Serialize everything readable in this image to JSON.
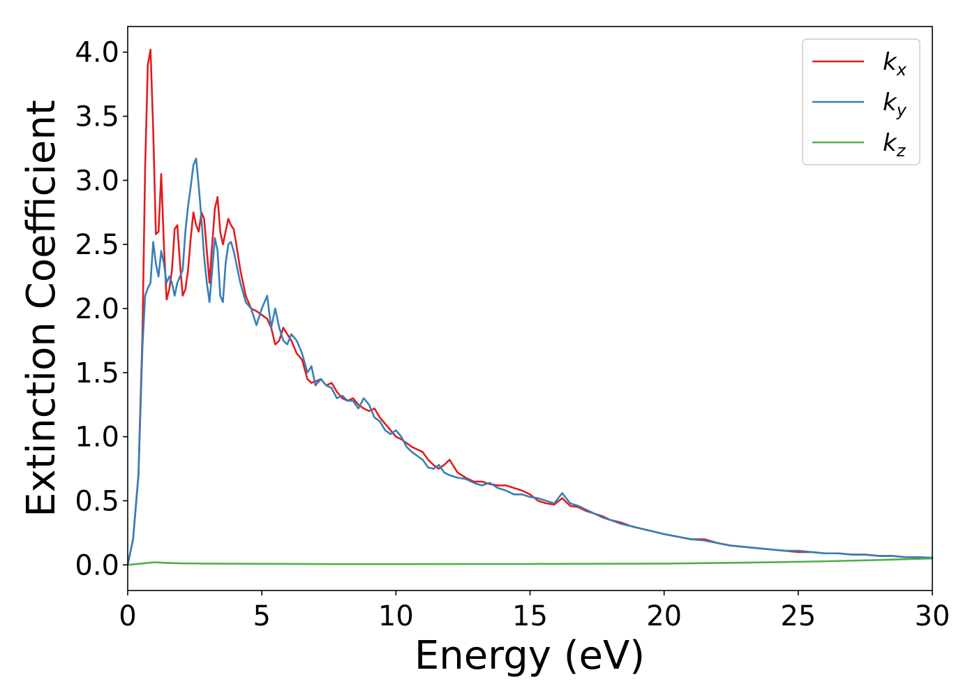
{
  "chart_data": {
    "type": "line",
    "xlabel": "Energy (eV)",
    "ylabel": "Extinction Coefficient",
    "xlim": [
      0,
      30
    ],
    "ylim": [
      -0.2,
      4.2
    ],
    "x_ticks": [
      0,
      5,
      10,
      15,
      20,
      25,
      30
    ],
    "x_tick_labels": [
      "0",
      "5",
      "10",
      "15",
      "20",
      "25",
      "30"
    ],
    "y_ticks": [
      0.0,
      0.5,
      1.0,
      1.5,
      2.0,
      2.5,
      3.0,
      3.5,
      4.0
    ],
    "y_tick_labels": [
      "0.0",
      "0.5",
      "1.0",
      "1.5",
      "2.0",
      "2.5",
      "3.0",
      "3.5",
      "4.0"
    ],
    "grid": false,
    "legend_position": "top-right",
    "series": [
      {
        "name": "kx",
        "legend_base": "k",
        "legend_sub": "x",
        "color": "#e41a1c",
        "x": [
          0,
          0.2,
          0.4,
          0.55,
          0.65,
          0.75,
          0.85,
          0.95,
          1.05,
          1.15,
          1.25,
          1.35,
          1.45,
          1.55,
          1.65,
          1.75,
          1.85,
          1.95,
          2.05,
          2.15,
          2.25,
          2.35,
          2.45,
          2.55,
          2.65,
          2.75,
          2.85,
          2.95,
          3.05,
          3.15,
          3.25,
          3.35,
          3.45,
          3.55,
          3.65,
          3.75,
          3.85,
          3.95,
          4.05,
          4.2,
          4.4,
          4.6,
          4.8,
          5.0,
          5.2,
          5.35,
          5.5,
          5.65,
          5.8,
          5.95,
          6.1,
          6.3,
          6.5,
          6.7,
          6.85,
          7.0,
          7.2,
          7.4,
          7.6,
          7.8,
          8.0,
          8.2,
          8.4,
          8.6,
          8.8,
          9.0,
          9.2,
          9.4,
          9.6,
          9.8,
          10.0,
          10.2,
          10.4,
          10.6,
          10.8,
          11.0,
          11.2,
          11.4,
          11.6,
          11.8,
          12.0,
          12.3,
          12.6,
          12.9,
          13.2,
          13.5,
          13.8,
          14.1,
          14.4,
          14.7,
          15.0,
          15.3,
          15.6,
          15.9,
          16.2,
          16.5,
          16.8,
          17.1,
          17.4,
          17.7,
          18.0,
          18.4,
          18.8,
          19.2,
          19.6,
          20.0,
          20.5,
          21.0,
          21.5,
          22.0,
          22.5,
          23.0,
          23.5,
          24.0,
          24.5,
          25.0,
          25.5,
          26.0,
          26.5,
          27.0,
          27.5,
          28.0,
          28.5,
          29.0,
          29.5,
          30.0
        ],
        "y": [
          0.0,
          0.2,
          0.7,
          1.8,
          3.1,
          3.9,
          4.02,
          3.4,
          2.58,
          2.6,
          3.05,
          2.5,
          2.07,
          2.15,
          2.3,
          2.62,
          2.65,
          2.35,
          2.1,
          2.15,
          2.3,
          2.55,
          2.75,
          2.65,
          2.6,
          2.75,
          2.7,
          2.45,
          2.2,
          2.5,
          2.78,
          2.87,
          2.6,
          2.5,
          2.6,
          2.7,
          2.65,
          2.62,
          2.5,
          2.3,
          2.1,
          2.0,
          1.98,
          1.95,
          1.92,
          1.85,
          1.72,
          1.75,
          1.85,
          1.8,
          1.75,
          1.65,
          1.6,
          1.45,
          1.42,
          1.43,
          1.45,
          1.4,
          1.42,
          1.35,
          1.3,
          1.28,
          1.3,
          1.25,
          1.22,
          1.2,
          1.22,
          1.15,
          1.1,
          1.05,
          1.0,
          0.98,
          0.95,
          0.92,
          0.9,
          0.88,
          0.82,
          0.78,
          0.75,
          0.78,
          0.82,
          0.72,
          0.68,
          0.65,
          0.65,
          0.63,
          0.62,
          0.62,
          0.6,
          0.58,
          0.55,
          0.5,
          0.48,
          0.47,
          0.52,
          0.46,
          0.45,
          0.42,
          0.4,
          0.38,
          0.35,
          0.33,
          0.3,
          0.28,
          0.26,
          0.24,
          0.22,
          0.2,
          0.2,
          0.17,
          0.15,
          0.14,
          0.13,
          0.12,
          0.11,
          0.1,
          0.1,
          0.09,
          0.09,
          0.08,
          0.08,
          0.07,
          0.07,
          0.06,
          0.06,
          0.055
        ]
      },
      {
        "name": "ky",
        "legend_base": "k",
        "legend_sub": "y",
        "color": "#377eb8",
        "x": [
          0,
          0.2,
          0.4,
          0.55,
          0.65,
          0.75,
          0.85,
          0.95,
          1.05,
          1.15,
          1.25,
          1.35,
          1.45,
          1.55,
          1.65,
          1.75,
          1.85,
          1.95,
          2.05,
          2.15,
          2.25,
          2.35,
          2.45,
          2.55,
          2.65,
          2.75,
          2.85,
          2.95,
          3.05,
          3.15,
          3.25,
          3.35,
          3.45,
          3.55,
          3.65,
          3.75,
          3.85,
          3.95,
          4.05,
          4.2,
          4.4,
          4.6,
          4.8,
          5.0,
          5.2,
          5.35,
          5.5,
          5.65,
          5.8,
          5.95,
          6.1,
          6.3,
          6.5,
          6.7,
          6.85,
          7.0,
          7.2,
          7.4,
          7.6,
          7.8,
          8.0,
          8.2,
          8.4,
          8.6,
          8.8,
          9.0,
          9.2,
          9.4,
          9.6,
          9.8,
          10.0,
          10.2,
          10.4,
          10.6,
          10.8,
          11.0,
          11.2,
          11.4,
          11.6,
          11.8,
          12.0,
          12.3,
          12.6,
          12.9,
          13.2,
          13.5,
          13.8,
          14.1,
          14.4,
          14.7,
          15.0,
          15.3,
          15.6,
          15.9,
          16.2,
          16.5,
          16.8,
          17.1,
          17.4,
          17.7,
          18.0,
          18.4,
          18.8,
          19.2,
          19.6,
          20.0,
          20.5,
          21.0,
          21.5,
          22.0,
          22.5,
          23.0,
          23.5,
          24.0,
          24.5,
          25.0,
          25.5,
          26.0,
          26.5,
          27.0,
          27.5,
          28.0,
          28.5,
          29.0,
          29.5,
          30.0
        ],
        "y": [
          0.0,
          0.2,
          0.7,
          1.7,
          2.1,
          2.16,
          2.2,
          2.52,
          2.35,
          2.25,
          2.45,
          2.35,
          2.2,
          2.25,
          2.2,
          2.1,
          2.2,
          2.25,
          2.3,
          2.6,
          2.8,
          2.95,
          3.12,
          3.17,
          2.95,
          2.7,
          2.4,
          2.2,
          2.05,
          2.3,
          2.55,
          2.45,
          2.1,
          2.05,
          2.35,
          2.5,
          2.52,
          2.45,
          2.35,
          2.2,
          2.05,
          2.0,
          1.87,
          2.0,
          2.1,
          1.85,
          2.0,
          1.85,
          1.75,
          1.72,
          1.8,
          1.75,
          1.65,
          1.5,
          1.55,
          1.4,
          1.45,
          1.4,
          1.38,
          1.3,
          1.32,
          1.28,
          1.28,
          1.22,
          1.3,
          1.25,
          1.15,
          1.12,
          1.05,
          1.02,
          1.05,
          1.0,
          0.92,
          0.88,
          0.85,
          0.82,
          0.76,
          0.75,
          0.78,
          0.72,
          0.7,
          0.68,
          0.67,
          0.64,
          0.62,
          0.64,
          0.6,
          0.58,
          0.55,
          0.55,
          0.53,
          0.52,
          0.5,
          0.48,
          0.56,
          0.48,
          0.46,
          0.43,
          0.4,
          0.37,
          0.35,
          0.32,
          0.3,
          0.28,
          0.26,
          0.24,
          0.22,
          0.2,
          0.19,
          0.17,
          0.15,
          0.14,
          0.13,
          0.12,
          0.11,
          0.11,
          0.1,
          0.09,
          0.09,
          0.08,
          0.08,
          0.07,
          0.07,
          0.06,
          0.06,
          0.055
        ]
      },
      {
        "name": "kz",
        "legend_base": "k",
        "legend_sub": "z",
        "color": "#4daf4a",
        "x": [
          0,
          0.5,
          1.0,
          1.5,
          2.0,
          3.0,
          5.0,
          8.0,
          10.0,
          15.0,
          20.0,
          22.0,
          24.0,
          26.0,
          28.0,
          30.0
        ],
        "y": [
          0.0,
          0.01,
          0.02,
          0.015,
          0.012,
          0.01,
          0.008,
          0.006,
          0.006,
          0.007,
          0.01,
          0.015,
          0.02,
          0.028,
          0.038,
          0.05
        ]
      }
    ]
  }
}
